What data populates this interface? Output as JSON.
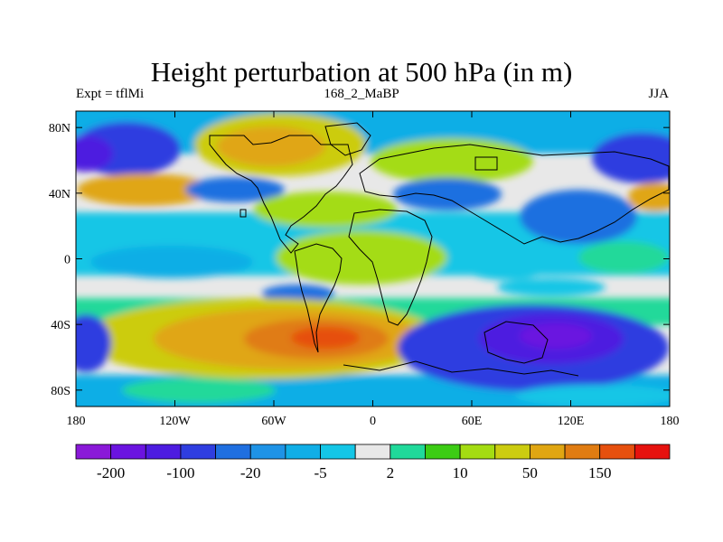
{
  "title": "Height perturbation at 500 hPa (in m)",
  "left_string": "Expt = tflMi",
  "center_string": "168_2_MaBP",
  "right_string": "JJA",
  "map": {
    "projection": "cylindrical-equidistant",
    "lon_range": [
      -180,
      180
    ],
    "lat_range": [
      -90,
      90
    ],
    "lon_ticks": [
      {
        "value": -180,
        "label": "180"
      },
      {
        "value": -120,
        "label": "120W"
      },
      {
        "value": -60,
        "label": "60W"
      },
      {
        "value": 0,
        "label": "0"
      },
      {
        "value": 60,
        "label": "60E"
      },
      {
        "value": 120,
        "label": "120E"
      },
      {
        "value": 180,
        "label": "180"
      }
    ],
    "lat_ticks": [
      {
        "value": 80,
        "label": "80N"
      },
      {
        "value": 40,
        "label": "40N"
      },
      {
        "value": 0,
        "label": "0"
      },
      {
        "value": -40,
        "label": "40S"
      },
      {
        "value": -80,
        "label": "80S"
      }
    ]
  },
  "colorbar": {
    "colors": [
      "#8a19d8",
      "#6b14e0",
      "#4d1ce0",
      "#2f3ee0",
      "#1f6fe0",
      "#1e93e6",
      "#10aee6",
      "#14c6e6",
      "#e8e8e8",
      "#20d99a",
      "#3ccc14",
      "#a4dc12",
      "#cccc10",
      "#e0a612",
      "#e07c12",
      "#e6500e",
      "#e6120e"
    ],
    "labels": [
      {
        "after_box": 1,
        "text": "-200"
      },
      {
        "after_box": 3,
        "text": "-100"
      },
      {
        "after_box": 5,
        "text": "-20"
      },
      {
        "after_box": 7,
        "text": "-5"
      },
      {
        "after_box": 9,
        "text": "2"
      },
      {
        "after_box": 11,
        "text": "10"
      },
      {
        "after_box": 13,
        "text": "50"
      },
      {
        "after_box": 15,
        "text": "150"
      }
    ]
  }
}
